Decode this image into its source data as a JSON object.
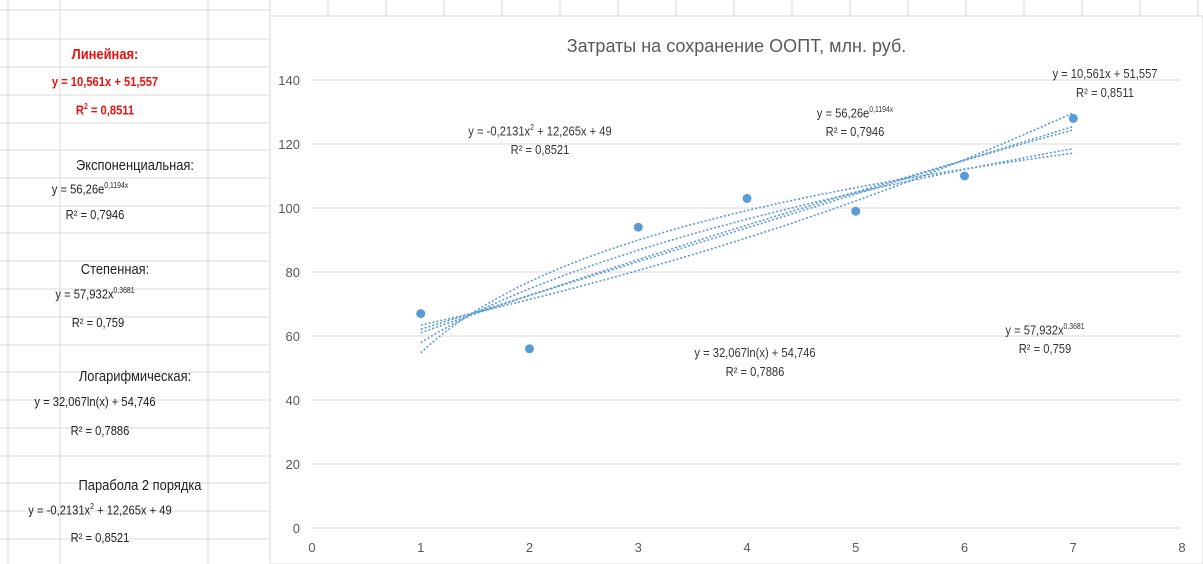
{
  "sidebar": {
    "linear": {
      "title": "Линейная:",
      "eq": "y = 10,561x + 51,557",
      "r2_prefix": "R",
      "r2_value": " = 0,8511"
    },
    "exponential": {
      "title": "Экспоненциальная:",
      "eq_base": "y = 56,26e",
      "eq_exp": "0,1194x",
      "r2": "R² = 0,7946"
    },
    "power": {
      "title": "Степенная:",
      "eq_base": "y = 57,932x",
      "eq_exp": "0,3681",
      "r2": "R² = 0,759"
    },
    "log": {
      "title": "Логарифмическая:",
      "eq": "y = 32,067ln(x) + 54,746",
      "r2": "R² = 0,7886"
    },
    "parabola": {
      "title": "Парабола 2 порядка",
      "eq_a": "y = -0,2131x",
      "eq_exp": "2",
      "eq_b": " + 12,265x + 49",
      "r2": "R² = 0,8521"
    }
  },
  "chart_data": {
    "type": "scatter",
    "title": "Затраты на сохранение ООПТ, млн. руб.",
    "xlim": [
      0,
      8
    ],
    "ylim": [
      0,
      140
    ],
    "x_ticks": [
      0,
      1,
      2,
      3,
      4,
      5,
      6,
      7,
      8
    ],
    "y_ticks": [
      0,
      20,
      40,
      60,
      80,
      100,
      120,
      140
    ],
    "grid": "horizontal",
    "point_color": "#5b9bd5",
    "points": [
      {
        "x": 1,
        "y": 67
      },
      {
        "x": 2,
        "y": 56
      },
      {
        "x": 3,
        "y": 94
      },
      {
        "x": 4,
        "y": 103
      },
      {
        "x": 5,
        "y": 99
      },
      {
        "x": 6,
        "y": 110
      },
      {
        "x": 7,
        "y": 128
      }
    ],
    "trendlines": [
      "linear",
      "exponential",
      "power",
      "logarithmic",
      "polynomial-2"
    ],
    "annotations": {
      "poly": {
        "eq_a": "y = -0,2131x",
        "eq_exp": "2",
        "eq_b": " + 12,265x + 49",
        "r2": "R² = 0,8521"
      },
      "exp": {
        "eq_base": "y = 56,26e",
        "eq_exp": "0,1194x",
        "r2": "R² = 0,7946"
      },
      "linear": {
        "eq": "y = 10,561x + 51,557",
        "r2": "R² = 0,8511"
      },
      "power": {
        "eq_base": "y = 57,932x",
        "eq_exp": "0,3681",
        "r2": "R² = 0,759"
      },
      "log": {
        "eq": "y = 32,067ln(x) + 54,746",
        "r2": "R² = 0,7886"
      }
    }
  }
}
